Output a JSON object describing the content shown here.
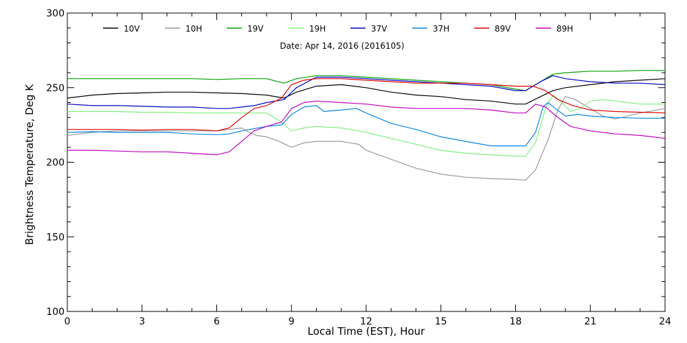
{
  "chart_data": {
    "type": "line",
    "subtitle": "Date: Apr 14, 2016 (2016105)",
    "xlabel": "Local Time (EST), Hour",
    "ylabel": "Brightness Temperature, Deg K",
    "xlim": [
      0,
      24
    ],
    "ylim": [
      100,
      300
    ],
    "xticks": [
      0,
      3,
      6,
      9,
      12,
      15,
      18,
      21,
      24
    ],
    "yticks": [
      100,
      150,
      200,
      250,
      300
    ],
    "grid": false,
    "legend_position": "top",
    "series": [
      {
        "name": "10V",
        "color": "#000000",
        "points": [
          [
            0,
            243
          ],
          [
            1,
            245
          ],
          [
            2,
            246
          ],
          [
            3,
            246.5
          ],
          [
            4,
            247
          ],
          [
            5,
            247
          ],
          [
            6,
            246.5
          ],
          [
            7,
            246
          ],
          [
            8,
            245
          ],
          [
            8.7,
            243
          ],
          [
            9.2,
            247
          ],
          [
            10,
            251
          ],
          [
            11,
            252
          ],
          [
            12,
            250
          ],
          [
            13,
            247
          ],
          [
            14,
            245
          ],
          [
            15,
            244
          ],
          [
            16,
            242
          ],
          [
            17,
            241
          ],
          [
            18,
            239
          ],
          [
            18.4,
            239
          ],
          [
            19,
            244
          ],
          [
            19.5,
            248
          ],
          [
            20,
            250
          ],
          [
            21,
            252
          ],
          [
            22,
            254
          ],
          [
            23,
            255
          ],
          [
            24,
            256
          ]
        ]
      },
      {
        "name": "10H",
        "color": "#999999",
        "points": [
          [
            0,
            218
          ],
          [
            1,
            220
          ],
          [
            2,
            221
          ],
          [
            3,
            221
          ],
          [
            4,
            221
          ],
          [
            5,
            221
          ],
          [
            6,
            221
          ],
          [
            6.5,
            222
          ],
          [
            7,
            223
          ],
          [
            7.3,
            220
          ],
          [
            7.6,
            218
          ],
          [
            8,
            217
          ],
          [
            8.5,
            214
          ],
          [
            9,
            210
          ],
          [
            9.5,
            213
          ],
          [
            10,
            214
          ],
          [
            11,
            214
          ],
          [
            11.7,
            212
          ],
          [
            12,
            208
          ],
          [
            13,
            202
          ],
          [
            14,
            196
          ],
          [
            15,
            192
          ],
          [
            16,
            190
          ],
          [
            17,
            189
          ],
          [
            18,
            188.5
          ],
          [
            18.4,
            188
          ],
          [
            18.8,
            195
          ],
          [
            19.3,
            215
          ],
          [
            19.7,
            235
          ],
          [
            20,
            244
          ],
          [
            20.4,
            242
          ],
          [
            21,
            236
          ],
          [
            21.5,
            231
          ],
          [
            22,
            229
          ],
          [
            23,
            233
          ],
          [
            24,
            236
          ]
        ]
      },
      {
        "name": "19V",
        "color": "#00a000",
        "points": [
          [
            0,
            256
          ],
          [
            1,
            256
          ],
          [
            2,
            256
          ],
          [
            3,
            256
          ],
          [
            4,
            256
          ],
          [
            5,
            256
          ],
          [
            6,
            255.5
          ],
          [
            7,
            256
          ],
          [
            8,
            256
          ],
          [
            8.7,
            253
          ],
          [
            9.2,
            256
          ],
          [
            10,
            258
          ],
          [
            11,
            258
          ],
          [
            12,
            257
          ],
          [
            13,
            256
          ],
          [
            14,
            255
          ],
          [
            15,
            254
          ],
          [
            16,
            253
          ],
          [
            17,
            252
          ],
          [
            18,
            249
          ],
          [
            18.4,
            248
          ],
          [
            19,
            254
          ],
          [
            19.5,
            259
          ],
          [
            20,
            260
          ],
          [
            21,
            261
          ],
          [
            22,
            261
          ],
          [
            23,
            261.5
          ],
          [
            24,
            261.5
          ]
        ]
      },
      {
        "name": "19H",
        "color": "#7cf07c",
        "points": [
          [
            0,
            234
          ],
          [
            1,
            234
          ],
          [
            2,
            234
          ],
          [
            3,
            233.5
          ],
          [
            4,
            233.5
          ],
          [
            5,
            233
          ],
          [
            6,
            233
          ],
          [
            7,
            233
          ],
          [
            8,
            233
          ],
          [
            8.5,
            228
          ],
          [
            9,
            221
          ],
          [
            9.5,
            223
          ],
          [
            10,
            224
          ],
          [
            11,
            223
          ],
          [
            11.7,
            221
          ],
          [
            12,
            220
          ],
          [
            13,
            216
          ],
          [
            14,
            212
          ],
          [
            15,
            208
          ],
          [
            16,
            206
          ],
          [
            17,
            205
          ],
          [
            18,
            204
          ],
          [
            18.4,
            204
          ],
          [
            18.8,
            213
          ],
          [
            19.2,
            236
          ],
          [
            19.5,
            245
          ],
          [
            19.8,
            241
          ],
          [
            20.2,
            234
          ],
          [
            20.6,
            236
          ],
          [
            21,
            241
          ],
          [
            21.5,
            242
          ],
          [
            22,
            241
          ],
          [
            23,
            239
          ],
          [
            24,
            239
          ]
        ]
      },
      {
        "name": "37V",
        "color": "#0000c0",
        "points": [
          [
            0,
            239
          ],
          [
            1,
            238
          ],
          [
            2,
            238
          ],
          [
            3,
            237.5
          ],
          [
            4,
            237
          ],
          [
            5,
            237
          ],
          [
            6,
            236
          ],
          [
            6.5,
            236
          ],
          [
            7,
            237
          ],
          [
            7.5,
            238
          ],
          [
            8,
            240
          ],
          [
            8.7,
            242
          ],
          [
            9.2,
            250
          ],
          [
            10,
            257
          ],
          [
            11,
            257
          ],
          [
            12,
            256
          ],
          [
            13,
            255
          ],
          [
            14,
            254
          ],
          [
            15,
            253
          ],
          [
            16,
            252
          ],
          [
            17,
            251
          ],
          [
            18,
            248
          ],
          [
            18.4,
            248
          ],
          [
            19,
            254
          ],
          [
            19.5,
            258
          ],
          [
            20,
            256
          ],
          [
            21,
            254
          ],
          [
            22,
            253
          ],
          [
            23,
            253
          ],
          [
            24,
            252
          ]
        ]
      },
      {
        "name": "37H",
        "color": "#0a84e0",
        "points": [
          [
            0,
            220
          ],
          [
            1,
            220.5
          ],
          [
            2,
            220
          ],
          [
            3,
            220
          ],
          [
            4,
            220
          ],
          [
            5,
            219
          ],
          [
            6,
            218.5
          ],
          [
            6.5,
            219
          ],
          [
            7,
            221
          ],
          [
            8,
            224
          ],
          [
            8.6,
            225
          ],
          [
            9,
            232
          ],
          [
            9.5,
            237
          ],
          [
            10,
            238
          ],
          [
            10.3,
            234
          ],
          [
            11,
            235
          ],
          [
            11.6,
            236
          ],
          [
            12,
            233
          ],
          [
            13,
            226
          ],
          [
            14,
            222
          ],
          [
            15,
            217
          ],
          [
            16,
            214
          ],
          [
            17,
            211
          ],
          [
            18,
            211
          ],
          [
            18.4,
            211
          ],
          [
            18.8,
            220
          ],
          [
            19.1,
            237
          ],
          [
            19.3,
            240
          ],
          [
            19.6,
            236
          ],
          [
            20,
            231
          ],
          [
            20.5,
            232
          ],
          [
            21,
            231
          ],
          [
            22,
            230
          ],
          [
            23,
            229.5
          ],
          [
            24,
            229.5
          ]
        ]
      },
      {
        "name": "89V",
        "color": "#e00000",
        "points": [
          [
            0,
            222
          ],
          [
            1,
            222
          ],
          [
            2,
            222
          ],
          [
            3,
            221.5
          ],
          [
            4,
            222
          ],
          [
            5,
            222
          ],
          [
            6,
            221
          ],
          [
            6.5,
            223
          ],
          [
            7,
            230
          ],
          [
            7.5,
            236
          ],
          [
            8,
            238
          ],
          [
            8.6,
            243
          ],
          [
            9,
            252
          ],
          [
            9.5,
            255
          ],
          [
            10,
            256
          ],
          [
            11,
            256
          ],
          [
            12,
            255
          ],
          [
            13,
            254
          ],
          [
            14,
            253
          ],
          [
            15,
            253
          ],
          [
            16,
            253
          ],
          [
            17,
            252
          ],
          [
            18,
            251
          ],
          [
            18.7,
            251
          ],
          [
            19.2,
            248
          ],
          [
            19.7,
            242
          ],
          [
            20.3,
            238
          ],
          [
            21,
            235
          ],
          [
            22,
            234
          ],
          [
            23,
            233.5
          ],
          [
            24,
            233
          ]
        ]
      },
      {
        "name": "89H",
        "color": "#c000c0",
        "points": [
          [
            0,
            208
          ],
          [
            1,
            208
          ],
          [
            2,
            207.5
          ],
          [
            3,
            207
          ],
          [
            4,
            207
          ],
          [
            5,
            206
          ],
          [
            6,
            205
          ],
          [
            6.5,
            207
          ],
          [
            7,
            214
          ],
          [
            7.5,
            221
          ],
          [
            8,
            224
          ],
          [
            8.6,
            227
          ],
          [
            9,
            236
          ],
          [
            9.5,
            240
          ],
          [
            10,
            241
          ],
          [
            11,
            240
          ],
          [
            12,
            239
          ],
          [
            13,
            237
          ],
          [
            14,
            236
          ],
          [
            15,
            236
          ],
          [
            16,
            236
          ],
          [
            17,
            235
          ],
          [
            18,
            233
          ],
          [
            18.4,
            233
          ],
          [
            18.8,
            239
          ],
          [
            19.2,
            237
          ],
          [
            19.7,
            230
          ],
          [
            20.2,
            224
          ],
          [
            21,
            221
          ],
          [
            22,
            219
          ],
          [
            23,
            218
          ],
          [
            24,
            216
          ]
        ]
      }
    ]
  }
}
